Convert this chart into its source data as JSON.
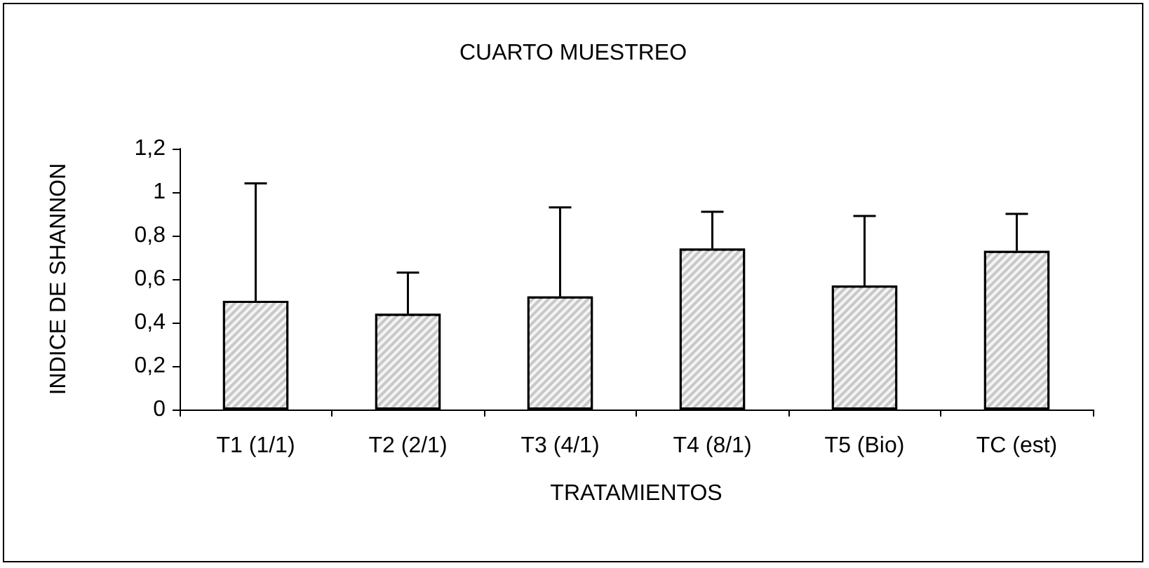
{
  "chart_data": {
    "type": "bar",
    "title": "CUARTO MUESTREO",
    "xlabel": "TRATAMIENTOS",
    "ylabel": "INDICE DE SHANNON",
    "categories": [
      "T1 (1/1)",
      "T2 (2/1)",
      "T3 (4/1)",
      "T4 (8/1)",
      "T5 (Bio)",
      "TC (est)"
    ],
    "values": [
      0.5,
      0.44,
      0.52,
      0.74,
      0.57,
      0.73
    ],
    "errors": [
      [
        0.5,
        1.04
      ],
      [
        0.44,
        0.63
      ],
      [
        0.52,
        0.93
      ],
      [
        0.74,
        0.91
      ],
      [
        0.57,
        0.89
      ],
      [
        0.73,
        0.9
      ]
    ],
    "color": "#c8c8c8",
    "ylim": [
      0,
      1.2
    ],
    "yticks": [
      0,
      {
        "value": 0.2,
        "label": "0,2"
      },
      {
        "value": 0.4,
        "label": "0,4"
      },
      {
        "value": 0.6,
        "label": "0,6"
      },
      {
        "value": 0.8,
        "label": "0,8"
      },
      1,
      {
        "value": 1.2,
        "label": "1,2"
      }
    ],
    "grid": false
  }
}
